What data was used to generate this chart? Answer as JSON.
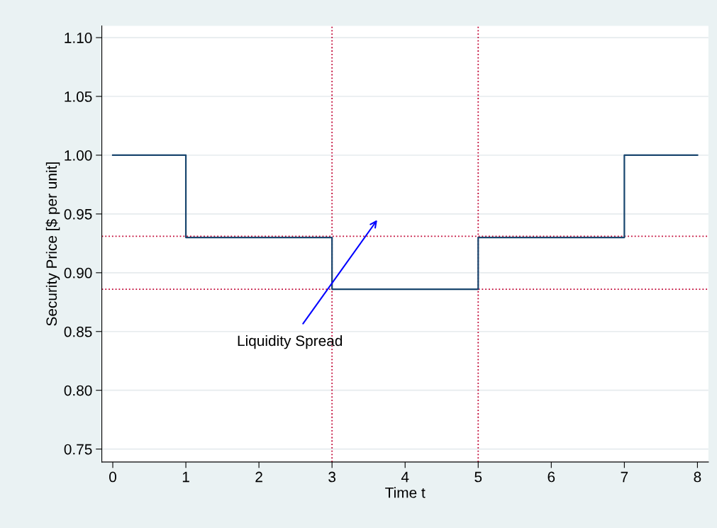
{
  "chart_data": {
    "type": "step",
    "xlabel": "Time t",
    "ylabel": "Security Price [$ per unit]",
    "x": [
      0,
      1,
      3,
      5,
      7,
      8
    ],
    "series": [
      {
        "color": "#1a476f",
        "values": [
          1.0,
          0.93,
          0.886,
          0.93,
          1.0,
          1.0
        ]
      }
    ],
    "xlim": [
      -0.15,
      8.15
    ],
    "xticks": [
      0,
      1,
      2,
      3,
      4,
      5,
      6,
      7,
      8
    ],
    "ylim": [
      0.739,
      1.11
    ],
    "yticks": [
      {
        "value": 0.75,
        "label": "0.75"
      },
      {
        "value": 0.8,
        "label": "0.80"
      },
      {
        "value": 0.85,
        "label": "0.85"
      },
      {
        "value": 0.9,
        "label": "0.90"
      },
      {
        "value": 0.95,
        "label": "0.95"
      },
      {
        "value": 1.0,
        "label": "1.00"
      },
      {
        "value": 1.05,
        "label": "1.05"
      },
      {
        "value": 1.1,
        "label": "1.10"
      }
    ],
    "grid": "y",
    "legend": false,
    "line_style": "solid",
    "marker": "none",
    "ref_lines": [
      {
        "axis": "x",
        "value": 3,
        "color": "#c10534",
        "line_style": "dotted"
      },
      {
        "axis": "x",
        "value": 5,
        "color": "#c10534",
        "line_style": "dotted"
      },
      {
        "axis": "y",
        "value": 0.931,
        "color": "#c10534",
        "line_style": "dotted"
      },
      {
        "axis": "y",
        "value": 0.886,
        "color": "#c10534",
        "line_style": "dotted"
      }
    ],
    "annotations": [
      "Liquidity Spread"
    ]
  }
}
